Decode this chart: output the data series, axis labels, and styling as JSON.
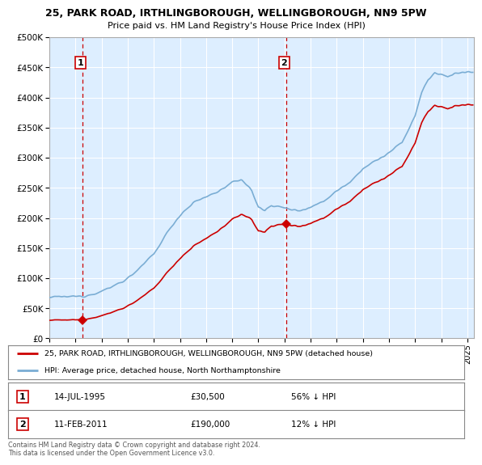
{
  "title": "25, PARK ROAD, IRTHLINGBOROUGH, WELLINGBOROUGH, NN9 5PW",
  "subtitle": "Price paid vs. HM Land Registry's House Price Index (HPI)",
  "legend_line1": "25, PARK ROAD, IRTHLINGBOROUGH, WELLINGBOROUGH, NN9 5PW (detached house)",
  "legend_line2": "HPI: Average price, detached house, North Northamptonshire",
  "note": "Contains HM Land Registry data © Crown copyright and database right 2024.\nThis data is licensed under the Open Government Licence v3.0.",
  "transaction1_date": "14-JUL-1995",
  "transaction1_price": "£30,500",
  "transaction1_hpi": "56% ↓ HPI",
  "transaction2_date": "11-FEB-2011",
  "transaction2_price": "£190,000",
  "transaction2_hpi": "12% ↓ HPI",
  "ylim": [
    0,
    500000
  ],
  "yticks": [
    0,
    50000,
    100000,
    150000,
    200000,
    250000,
    300000,
    350000,
    400000,
    450000,
    500000
  ],
  "price_color": "#cc0000",
  "hpi_line_color": "#7aadd4",
  "vline_color": "#cc0000",
  "bg_color": "#ddeeff",
  "grid_color": "#ffffff",
  "transaction1_x": 1995.54,
  "transaction1_y": 30500,
  "transaction2_x": 2011.12,
  "transaction2_y": 190000,
  "xlim_left": 1993.0,
  "xlim_right": 2025.5
}
